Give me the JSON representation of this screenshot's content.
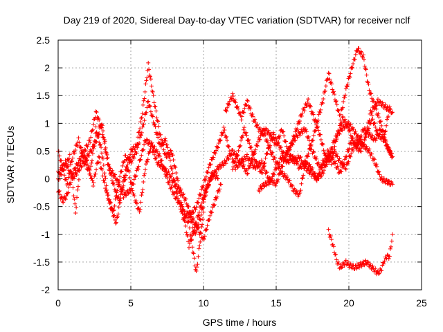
{
  "chart_data": {
    "type": "scatter",
    "title": "Day 219 of 2020, Sidereal Day-to-day VTEC variation (SDTVAR) for receiver nclf",
    "xlabel": "GPS time / hours",
    "ylabel": "SDTVAR / TECUs",
    "xlim": [
      0,
      25
    ],
    "ylim": [
      -2,
      2.5
    ],
    "xticks": [
      "0",
      "5",
      "10",
      "15",
      "20",
      "25"
    ],
    "yticks": [
      "-2",
      "-1.5",
      "-1",
      "-0.5",
      "0",
      "0.5",
      "1",
      "1.5",
      "2",
      "2.5"
    ],
    "grid": true,
    "marker": "plus",
    "color": "#ff0000",
    "series": [
      {
        "x": [
          0.0,
          0.3,
          0.6,
          1.0,
          1.4,
          1.8,
          2.2,
          2.6,
          3.0,
          3.4,
          3.8,
          4.2,
          4.6,
          5.0,
          5.4,
          5.8,
          6.2,
          6.6,
          7.0,
          7.4,
          7.8,
          8.2,
          8.6,
          9.0,
          9.4,
          9.8,
          10.2,
          10.6,
          11.0
        ],
        "y": [
          0.5,
          0.2,
          -0.1,
          0.4,
          0.7,
          0.3,
          0.1,
          0.9,
          0.5,
          -0.3,
          -0.6,
          0.0,
          0.4,
          0.3,
          0.5,
          0.9,
          1.4,
          1.0,
          0.6,
          0.7,
          0.2,
          -0.3,
          -0.7,
          -0.6,
          -1.0,
          -0.7,
          -0.2,
          0.1,
          0.0
        ]
      },
      {
        "x": [
          0.0,
          0.3,
          0.6,
          1.0,
          1.4,
          1.8,
          2.2,
          2.6,
          3.0,
          3.4,
          3.8,
          4.2,
          4.6,
          5.0,
          5.4,
          5.8,
          6.2,
          6.6,
          7.0,
          7.4,
          7.8,
          8.2,
          8.6,
          9.0,
          9.4,
          9.8,
          10.2,
          10.6
        ],
        "y": [
          -0.2,
          -0.4,
          -0.3,
          0.1,
          0.3,
          0.5,
          0.7,
          1.2,
          0.9,
          0.3,
          -0.1,
          -0.4,
          0.1,
          0.5,
          0.6,
          1.2,
          2.05,
          1.4,
          0.8,
          0.4,
          0.5,
          0.0,
          -0.6,
          -1.2,
          -0.9,
          -0.5,
          -0.2,
          0.1
        ]
      },
      {
        "x": [
          0.0,
          0.4,
          0.8,
          1.2,
          1.6,
          2.0,
          2.4,
          2.8,
          3.2,
          3.6,
          4.0,
          4.4,
          4.8,
          5.2,
          5.6,
          6.0,
          6.4,
          6.8,
          7.2,
          7.6,
          8.0,
          8.4,
          8.8,
          9.2,
          9.6,
          10.0,
          10.4,
          10.8,
          11.2
        ],
        "y": [
          0.0,
          0.2,
          0.4,
          -0.6,
          0.5,
          0.3,
          -0.1,
          0.4,
          -0.1,
          -0.5,
          -0.8,
          -0.2,
          0.2,
          -0.3,
          -0.6,
          0.2,
          0.6,
          0.3,
          0.2,
          0.1,
          -0.1,
          -0.2,
          -0.4,
          -0.7,
          -0.9,
          -1.1,
          -0.7,
          -0.4,
          -0.1
        ]
      },
      {
        "x": [
          0.0,
          0.5,
          1.0,
          1.5,
          2.0,
          2.5,
          3.0,
          3.5,
          4.0,
          4.5,
          5.0,
          5.5,
          6.0,
          6.5,
          7.0,
          7.5,
          8.0,
          8.5,
          9.0,
          9.5,
          10.0
        ],
        "y": [
          0.1,
          0.3,
          0.0,
          0.2,
          0.4,
          0.6,
          1.0,
          0.2,
          0.0,
          -0.3,
          -0.2,
          0.2,
          0.7,
          0.6,
          0.4,
          0.0,
          -0.3,
          -0.5,
          -0.8,
          -1.7,
          -0.6
        ]
      },
      {
        "x": [
          9.0,
          9.5,
          10.0,
          10.5,
          11.0,
          11.4,
          11.8,
          12.2,
          12.6,
          13.0,
          13.4,
          13.8,
          14.2,
          14.6,
          15.0,
          15.4,
          15.8,
          16.2,
          16.6,
          17.0,
          17.4,
          17.8,
          18.2,
          18.6,
          19.0,
          19.4,
          19.8,
          20.2,
          20.6,
          21.0,
          21.4,
          21.8,
          22.2,
          22.6,
          23.0
        ],
        "y": [
          -0.7,
          -0.5,
          -0.1,
          0.3,
          0.6,
          0.9,
          0.5,
          0.2,
          0.3,
          0.1,
          0.4,
          0.7,
          0.9,
          0.8,
          0.6,
          0.9,
          0.5,
          0.3,
          0.4,
          0.2,
          0.1,
          0.0,
          0.3,
          0.5,
          0.3,
          0.1,
          0.4,
          0.7,
          0.6,
          0.9,
          0.8,
          0.7,
          0.9,
          0.6,
          0.4
        ]
      },
      {
        "x": [
          10.0,
          10.5,
          11.0,
          11.5,
          12.0,
          12.5,
          13.0,
          13.5,
          14.0,
          14.5,
          15.0,
          15.5,
          16.0,
          16.5,
          17.0,
          17.5,
          18.0,
          18.5,
          19.0,
          19.5,
          20.0,
          20.5,
          21.0,
          21.5,
          22.0,
          22.5,
          23.0
        ],
        "y": [
          -0.3,
          0.0,
          0.2,
          0.3,
          0.5,
          0.3,
          0.4,
          0.2,
          0.3,
          0.0,
          -0.1,
          0.3,
          0.6,
          0.8,
          0.9,
          0.5,
          0.2,
          0.3,
          0.7,
          0.9,
          1.0,
          0.8,
          0.6,
          1.2,
          1.4,
          1.3,
          1.2
        ]
      },
      {
        "x": [
          11.5,
          11.8,
          12.0,
          12.3,
          12.6,
          13.0,
          13.4,
          13.8,
          14.2,
          14.6,
          15.0,
          15.4,
          15.8,
          16.2,
          16.6,
          17.0,
          17.4,
          17.8,
          18.2,
          18.6,
          19.0,
          19.4,
          19.8,
          20.2,
          20.6,
          21.0,
          21.4,
          21.8,
          22.2,
          22.6,
          23.0
        ],
        "y": [
          1.2,
          1.4,
          1.5,
          1.3,
          1.1,
          1.4,
          1.1,
          0.9,
          0.8,
          0.5,
          0.3,
          0.1,
          0.0,
          -0.2,
          -0.3,
          0.3,
          0.6,
          1.0,
          1.4,
          1.9,
          1.5,
          1.1,
          1.6,
          2.0,
          2.35,
          2.2,
          1.6,
          1.3,
          1.0,
          0.6,
          0.4
        ]
      },
      {
        "x": [
          13.8,
          14.2,
          14.6,
          15.0,
          15.4,
          15.8,
          16.2,
          16.6,
          17.0,
          17.4,
          17.8,
          18.2,
          18.6,
          19.0,
          19.4,
          19.8,
          20.2,
          20.6,
          21.0,
          21.4,
          21.8,
          22.2,
          22.6,
          23.0
        ],
        "y": [
          -0.2,
          -0.1,
          -0.05,
          0.2,
          0.4,
          0.3,
          0.4,
          0.2,
          0.3,
          0.2,
          0.0,
          0.1,
          0.4,
          0.5,
          0.3,
          0.2,
          0.5,
          0.7,
          0.6,
          0.5,
          0.3,
          0.0,
          -0.05,
          -0.1
        ]
      },
      {
        "x": [
          12.0,
          12.4,
          12.8,
          13.2,
          13.6,
          14.0,
          14.4,
          14.8,
          15.2,
          15.6,
          16.0,
          16.4,
          16.8,
          17.2,
          17.6,
          18.0,
          18.4,
          18.8,
          19.2,
          19.6,
          20.0,
          20.4,
          20.8,
          21.2,
          21.6,
          22.0,
          22.4,
          22.8
        ],
        "y": [
          0.2,
          0.5,
          0.9,
          0.6,
          0.3,
          0.1,
          0.5,
          0.8,
          0.6,
          0.4,
          0.6,
          0.9,
          1.2,
          1.4,
          1.1,
          0.8,
          0.4,
          0.3,
          0.8,
          1.1,
          0.9,
          0.6,
          0.5,
          0.8,
          1.1,
          0.8,
          0.7,
          1.3
        ]
      },
      {
        "x": [
          18.6,
          18.8,
          19.0,
          19.2,
          19.4,
          19.6,
          19.8,
          20.0,
          20.4,
          20.8,
          21.2,
          21.6,
          22.0,
          22.2,
          22.4,
          22.6,
          22.8,
          23.0
        ],
        "y": [
          -0.95,
          -1.1,
          -1.3,
          -1.5,
          -1.6,
          -1.55,
          -1.5,
          -1.55,
          -1.6,
          -1.55,
          -1.5,
          -1.6,
          -1.7,
          -1.65,
          -1.5,
          -1.4,
          -1.4,
          -1.0
        ]
      }
    ]
  }
}
